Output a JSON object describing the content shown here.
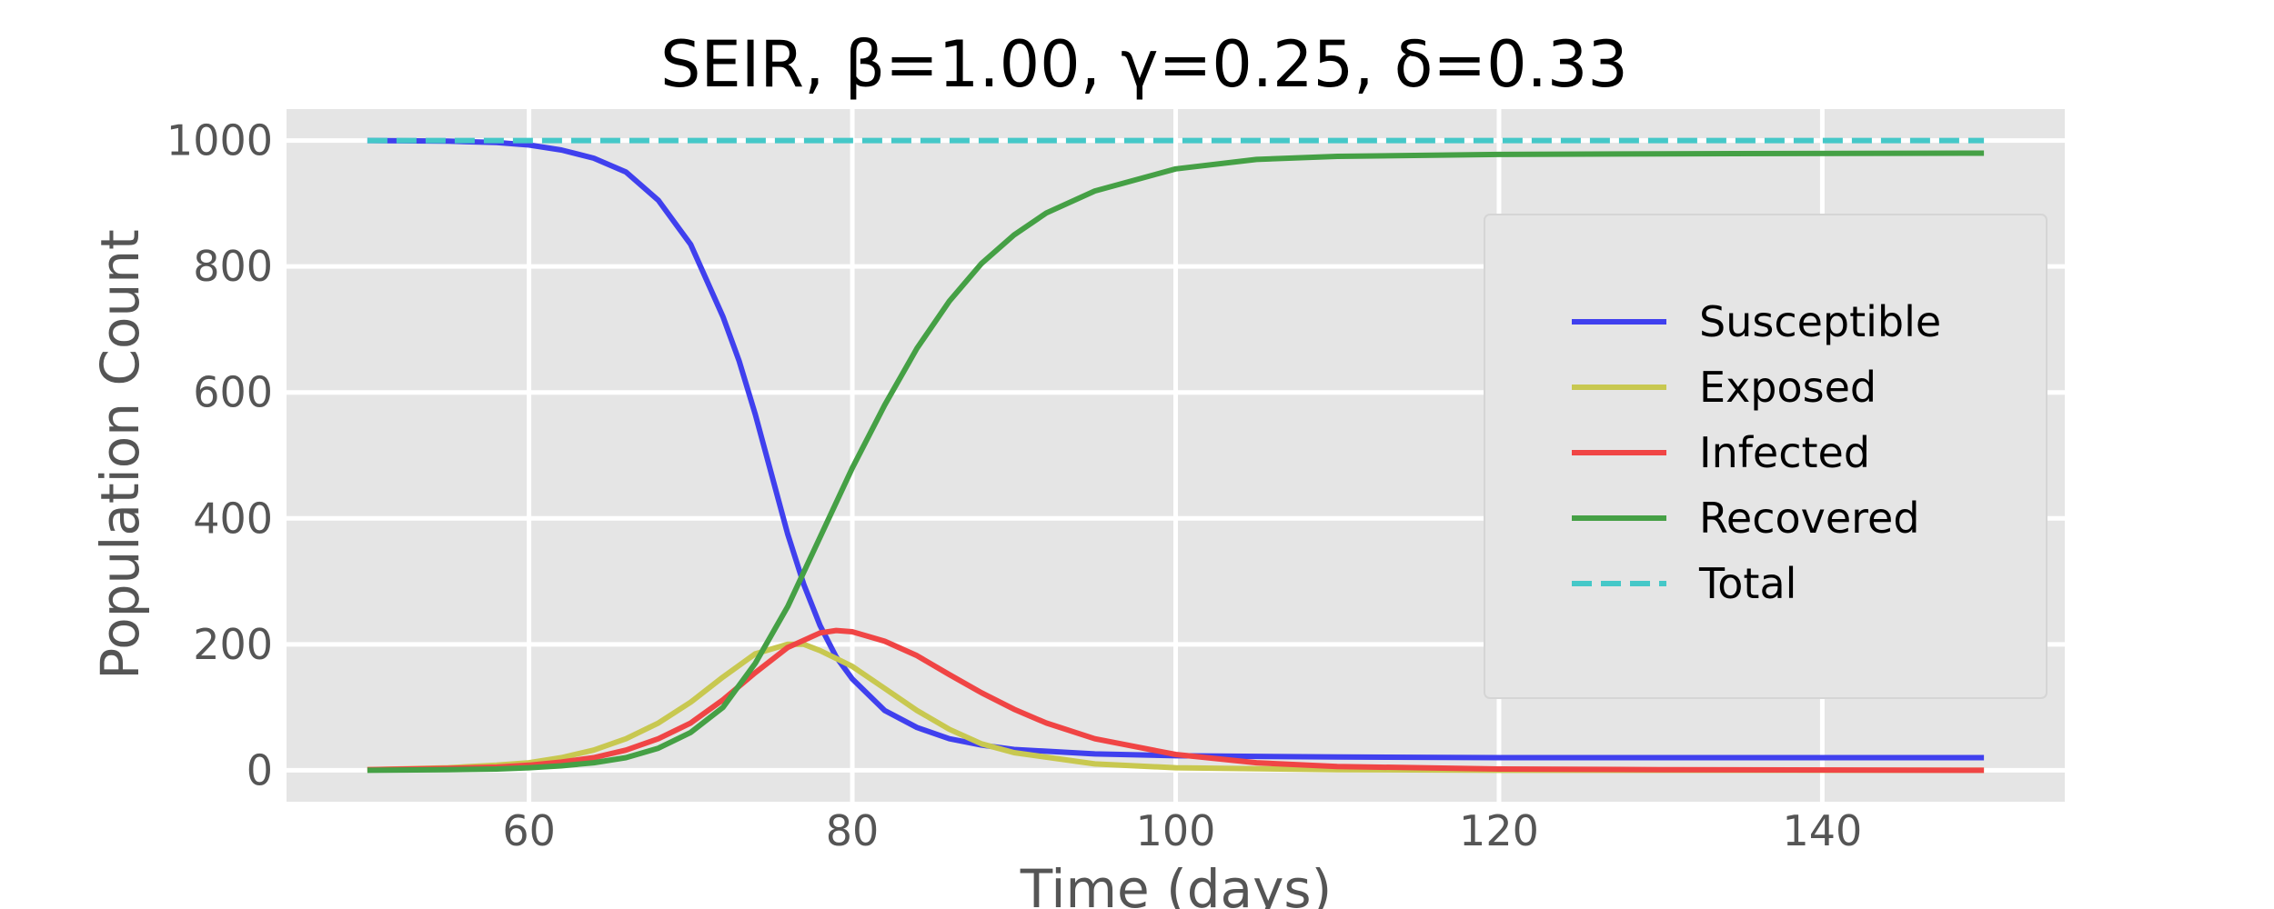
{
  "chart_data": {
    "type": "line",
    "title": "SEIR, β=1.00, γ=0.25, δ=0.33",
    "xlabel": "Time (days)",
    "ylabel": "Population Count",
    "xlim": [
      45,
      155
    ],
    "ylim": [
      -50,
      1050
    ],
    "xticks": [
      60,
      80,
      100,
      120,
      140
    ],
    "yticks": [
      0,
      200,
      400,
      600,
      800,
      1000
    ],
    "grid": true,
    "background": "#e5e5e5",
    "legend_position": "center-right",
    "series": [
      {
        "name": "Susceptible",
        "color": "#4040ee",
        "dash": "solid",
        "points": [
          [
            50,
            1000
          ],
          [
            55,
            999
          ],
          [
            58,
            997
          ],
          [
            60,
            993
          ],
          [
            62,
            985
          ],
          [
            64,
            972
          ],
          [
            66,
            950
          ],
          [
            68,
            905
          ],
          [
            70,
            835
          ],
          [
            72,
            720
          ],
          [
            73,
            650
          ],
          [
            74,
            565
          ],
          [
            75,
            470
          ],
          [
            76,
            375
          ],
          [
            77,
            295
          ],
          [
            78,
            230
          ],
          [
            79,
            180
          ],
          [
            80,
            145
          ],
          [
            82,
            95
          ],
          [
            84,
            68
          ],
          [
            86,
            50
          ],
          [
            88,
            40
          ],
          [
            90,
            33
          ],
          [
            95,
            26
          ],
          [
            100,
            23
          ],
          [
            110,
            21
          ],
          [
            120,
            20
          ],
          [
            130,
            20
          ],
          [
            150,
            20
          ]
        ]
      },
      {
        "name": "Exposed",
        "color": "#c8c850",
        "dash": "solid",
        "points": [
          [
            50,
            1
          ],
          [
            55,
            4
          ],
          [
            58,
            8
          ],
          [
            60,
            12
          ],
          [
            62,
            20
          ],
          [
            64,
            32
          ],
          [
            66,
            50
          ],
          [
            68,
            75
          ],
          [
            70,
            108
          ],
          [
            72,
            148
          ],
          [
            74,
            185
          ],
          [
            76,
            200
          ],
          [
            77,
            200
          ],
          [
            78,
            190
          ],
          [
            80,
            165
          ],
          [
            82,
            130
          ],
          [
            84,
            95
          ],
          [
            86,
            65
          ],
          [
            88,
            42
          ],
          [
            90,
            28
          ],
          [
            95,
            10
          ],
          [
            100,
            4
          ],
          [
            110,
            1
          ],
          [
            120,
            0
          ],
          [
            150,
            0
          ]
        ]
      },
      {
        "name": "Infected",
        "color": "#f04545",
        "dash": "solid",
        "points": [
          [
            50,
            1
          ],
          [
            55,
            3
          ],
          [
            58,
            5
          ],
          [
            60,
            8
          ],
          [
            62,
            13
          ],
          [
            64,
            20
          ],
          [
            66,
            32
          ],
          [
            68,
            50
          ],
          [
            70,
            75
          ],
          [
            72,
            112
          ],
          [
            74,
            155
          ],
          [
            76,
            195
          ],
          [
            78,
            218
          ],
          [
            79,
            222
          ],
          [
            80,
            220
          ],
          [
            82,
            205
          ],
          [
            84,
            182
          ],
          [
            86,
            152
          ],
          [
            88,
            123
          ],
          [
            90,
            97
          ],
          [
            92,
            75
          ],
          [
            95,
            50
          ],
          [
            100,
            25
          ],
          [
            105,
            12
          ],
          [
            110,
            6
          ],
          [
            120,
            2
          ],
          [
            130,
            1
          ],
          [
            150,
            0
          ]
        ]
      },
      {
        "name": "Recovered",
        "color": "#45a045",
        "dash": "solid",
        "points": [
          [
            50,
            0
          ],
          [
            55,
            1
          ],
          [
            58,
            2
          ],
          [
            60,
            4
          ],
          [
            62,
            7
          ],
          [
            64,
            12
          ],
          [
            66,
            20
          ],
          [
            68,
            35
          ],
          [
            70,
            60
          ],
          [
            72,
            100
          ],
          [
            74,
            170
          ],
          [
            76,
            260
          ],
          [
            78,
            370
          ],
          [
            80,
            480
          ],
          [
            82,
            580
          ],
          [
            84,
            670
          ],
          [
            86,
            745
          ],
          [
            88,
            805
          ],
          [
            90,
            850
          ],
          [
            92,
            885
          ],
          [
            95,
            920
          ],
          [
            100,
            955
          ],
          [
            105,
            970
          ],
          [
            110,
            975
          ],
          [
            120,
            978
          ],
          [
            130,
            979
          ],
          [
            150,
            980
          ]
        ]
      },
      {
        "name": "Total",
        "color": "#45c8c8",
        "dash": "dashed",
        "points": [
          [
            50,
            1000
          ],
          [
            150,
            1000
          ]
        ]
      }
    ]
  }
}
